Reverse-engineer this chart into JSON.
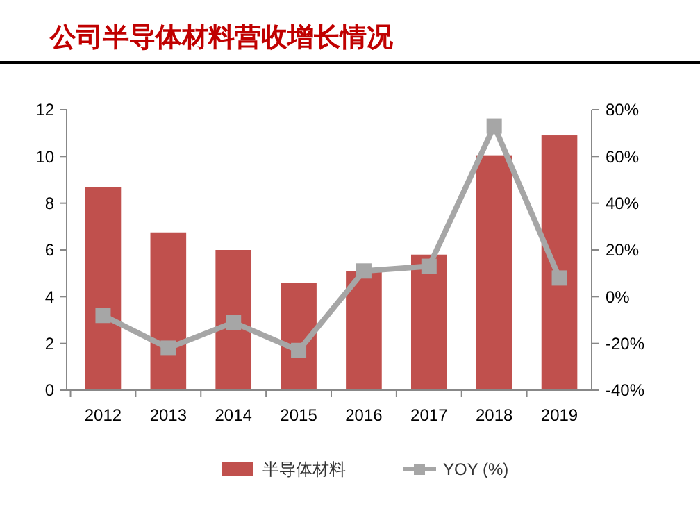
{
  "chart_data": {
    "type": "bar",
    "title": "公司半导体材料营收增长情况",
    "categories": [
      "2012",
      "2013",
      "2014",
      "2015",
      "2016",
      "2017",
      "2018",
      "2019"
    ],
    "series": [
      {
        "name": "半导体材料",
        "color": "#c0504d",
        "values": [
          8.7,
          6.75,
          6.0,
          4.6,
          5.1,
          5.8,
          10.05,
          10.9
        ]
      },
      {
        "name": "YOY (%)",
        "type": "line",
        "axis": "y2",
        "color": "#a6a6a6",
        "marker": "square",
        "values": [
          -8,
          -22,
          -11,
          -23,
          11,
          13,
          73,
          8
        ]
      }
    ],
    "ylim": [
      0,
      12
    ],
    "yticks": [
      0,
      2,
      4,
      6,
      8,
      10,
      12
    ],
    "y2lim": [
      -40,
      80
    ],
    "y2ticks": [
      {
        "value": -40,
        "label": "-40%"
      },
      {
        "value": -20,
        "label": "-20%"
      },
      {
        "value": 0,
        "label": "0%"
      },
      {
        "value": 20,
        "label": "20%"
      },
      {
        "value": 40,
        "label": "40%"
      },
      {
        "value": 60,
        "label": "60%"
      },
      {
        "value": 80,
        "label": "80%"
      }
    ],
    "legend": "bottom",
    "grid": false
  }
}
